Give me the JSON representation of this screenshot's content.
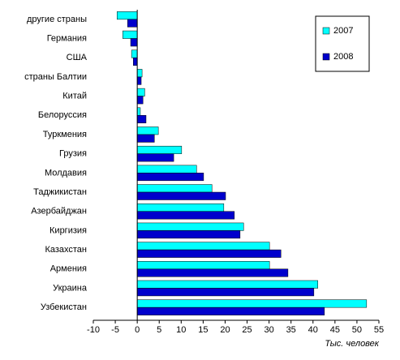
{
  "chart_data": {
    "type": "barh",
    "x_label": "Тыс. человек",
    "categories": [
      "другие страны",
      "Германия",
      "США",
      "страны Балтии",
      "Китай",
      "Белоруссия",
      "Туркмения",
      "Грузия",
      "Молдавия",
      "Таджикистан",
      "Азербайджан",
      "Киргизия",
      "Казахстан",
      "Армения",
      "Украина",
      "Узбекистан"
    ],
    "series": [
      {
        "name": "2007",
        "color": "#00ffff",
        "values": [
          -4.6,
          -3.3,
          -1.3,
          1.1,
          1.7,
          0.7,
          4.8,
          10.1,
          13.5,
          17,
          19.7,
          24.2,
          30.1,
          30.1,
          41.1,
          52.2
        ]
      },
      {
        "name": "2008",
        "color": "#0000cc",
        "values": [
          -2.2,
          -1.5,
          -0.9,
          0.9,
          1.3,
          2.0,
          3.9,
          8.3,
          15.1,
          20.1,
          22.1,
          23.4,
          32.7,
          34.3,
          40.2,
          42.6
        ]
      }
    ],
    "xlim": [
      -10,
      55
    ],
    "xticks": [
      -10,
      -5,
      0,
      5,
      10,
      15,
      20,
      25,
      30,
      35,
      40,
      45,
      50,
      55
    ],
    "legend": "top-right"
  }
}
